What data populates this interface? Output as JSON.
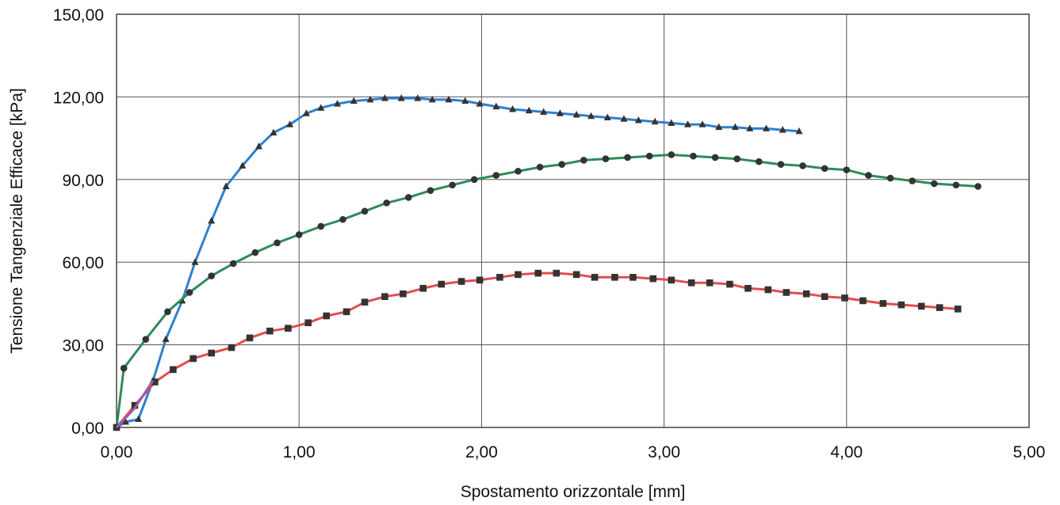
{
  "chart_data": {
    "type": "line",
    "title": "",
    "xlabel": "Spostamento orizzontale [mm]",
    "ylabel": "Tensione Tangenziale Efficace [kPa]",
    "xlim": [
      0,
      5
    ],
    "ylim": [
      0,
      150
    ],
    "x_ticks": [
      "0,00",
      "1,00",
      "2,00",
      "3,00",
      "4,00",
      "5,00"
    ],
    "y_ticks": [
      "0,00",
      "30,00",
      "60,00",
      "90,00",
      "120,00",
      "150,00"
    ],
    "grid": true,
    "legend": "none",
    "series": [
      {
        "color": "#2f7fd0",
        "marker": "triangle",
        "points": [
          [
            0.0,
            0.0
          ],
          [
            0.05,
            2.0
          ],
          [
            0.12,
            3.0
          ],
          [
            0.2,
            17.0
          ],
          [
            0.27,
            32.0
          ],
          [
            0.36,
            46.0
          ],
          [
            0.43,
            60.0
          ],
          [
            0.52,
            75.0
          ],
          [
            0.6,
            87.5
          ],
          [
            0.69,
            95.0
          ],
          [
            0.78,
            102.0
          ],
          [
            0.86,
            107.0
          ],
          [
            0.95,
            110.0
          ],
          [
            1.04,
            114.0
          ],
          [
            1.12,
            116.0
          ],
          [
            1.21,
            117.5
          ],
          [
            1.3,
            118.5
          ],
          [
            1.39,
            119.0
          ],
          [
            1.47,
            119.5
          ],
          [
            1.56,
            119.5
          ],
          [
            1.65,
            119.5
          ],
          [
            1.73,
            119.0
          ],
          [
            1.82,
            119.0
          ],
          [
            1.91,
            118.5
          ],
          [
            1.99,
            117.5
          ],
          [
            2.08,
            116.5
          ],
          [
            2.17,
            115.5
          ],
          [
            2.26,
            115.0
          ],
          [
            2.34,
            114.5
          ],
          [
            2.43,
            114.0
          ],
          [
            2.52,
            113.5
          ],
          [
            2.6,
            113.0
          ],
          [
            2.69,
            112.5
          ],
          [
            2.78,
            112.0
          ],
          [
            2.86,
            111.5
          ],
          [
            2.95,
            111.0
          ],
          [
            3.04,
            110.5
          ],
          [
            3.13,
            110.0
          ],
          [
            3.21,
            110.0
          ],
          [
            3.3,
            109.0
          ],
          [
            3.39,
            109.0
          ],
          [
            3.47,
            108.5
          ],
          [
            3.56,
            108.5
          ],
          [
            3.65,
            108.0
          ],
          [
            3.74,
            107.5
          ]
        ]
      },
      {
        "color": "#2e8b57",
        "marker": "circle",
        "points": [
          [
            0.0,
            0.0
          ],
          [
            0.04,
            21.5
          ],
          [
            0.16,
            32.0
          ],
          [
            0.28,
            42.0
          ],
          [
            0.4,
            49.0
          ],
          [
            0.52,
            55.0
          ],
          [
            0.64,
            59.5
          ],
          [
            0.76,
            63.5
          ],
          [
            0.88,
            67.0
          ],
          [
            1.0,
            70.0
          ],
          [
            1.12,
            73.0
          ],
          [
            1.24,
            75.5
          ],
          [
            1.36,
            78.5
          ],
          [
            1.48,
            81.5
          ],
          [
            1.6,
            83.5
          ],
          [
            1.72,
            86.0
          ],
          [
            1.84,
            88.0
          ],
          [
            1.96,
            90.0
          ],
          [
            2.08,
            91.5
          ],
          [
            2.2,
            93.0
          ],
          [
            2.32,
            94.5
          ],
          [
            2.44,
            95.5
          ],
          [
            2.56,
            97.0
          ],
          [
            2.68,
            97.5
          ],
          [
            2.8,
            98.0
          ],
          [
            2.92,
            98.5
          ],
          [
            3.04,
            99.0
          ],
          [
            3.16,
            98.5
          ],
          [
            3.28,
            98.0
          ],
          [
            3.4,
            97.5
          ],
          [
            3.52,
            96.5
          ],
          [
            3.64,
            95.5
          ],
          [
            3.76,
            95.0
          ],
          [
            3.88,
            94.0
          ],
          [
            4.0,
            93.5
          ],
          [
            4.12,
            91.5
          ],
          [
            4.24,
            90.5
          ],
          [
            4.36,
            89.5
          ],
          [
            4.48,
            88.5
          ],
          [
            4.6,
            88.0
          ],
          [
            4.72,
            87.5
          ]
        ]
      },
      {
        "color": "#e64b4b",
        "marker": "square",
        "points": [
          [
            0.0,
            0.0
          ],
          [
            0.1,
            8.0
          ],
          [
            0.21,
            16.5
          ],
          [
            0.31,
            21.0
          ],
          [
            0.42,
            25.0
          ],
          [
            0.52,
            27.0
          ],
          [
            0.63,
            29.0
          ],
          [
            0.73,
            32.5
          ],
          [
            0.84,
            35.0
          ],
          [
            0.94,
            36.0
          ],
          [
            1.05,
            38.0
          ],
          [
            1.15,
            40.5
          ],
          [
            1.26,
            42.0
          ],
          [
            1.36,
            45.5
          ],
          [
            1.47,
            47.5
          ],
          [
            1.57,
            48.5
          ],
          [
            1.68,
            50.5
          ],
          [
            1.78,
            52.0
          ],
          [
            1.89,
            53.0
          ],
          [
            1.99,
            53.5
          ],
          [
            2.1,
            54.5
          ],
          [
            2.2,
            55.5
          ],
          [
            2.31,
            56.0
          ],
          [
            2.41,
            56.0
          ],
          [
            2.52,
            55.5
          ],
          [
            2.62,
            54.5
          ],
          [
            2.73,
            54.5
          ],
          [
            2.83,
            54.5
          ],
          [
            2.94,
            54.0
          ],
          [
            3.04,
            53.5
          ],
          [
            3.15,
            52.5
          ],
          [
            3.25,
            52.5
          ],
          [
            3.36,
            52.0
          ],
          [
            3.46,
            50.5
          ],
          [
            3.57,
            50.0
          ],
          [
            3.67,
            49.0
          ],
          [
            3.78,
            48.5
          ],
          [
            3.88,
            47.5
          ],
          [
            3.99,
            47.0
          ],
          [
            4.09,
            46.0
          ],
          [
            4.2,
            45.0
          ],
          [
            4.3,
            44.5
          ],
          [
            4.41,
            44.0
          ],
          [
            4.51,
            43.5
          ],
          [
            4.61,
            43.0
          ]
        ]
      },
      {
        "color": "#a05aa8",
        "marker": "none",
        "points": [
          [
            0.0,
            0.0
          ],
          [
            0.1,
            7.0
          ],
          [
            0.2,
            17.0
          ]
        ]
      }
    ]
  }
}
